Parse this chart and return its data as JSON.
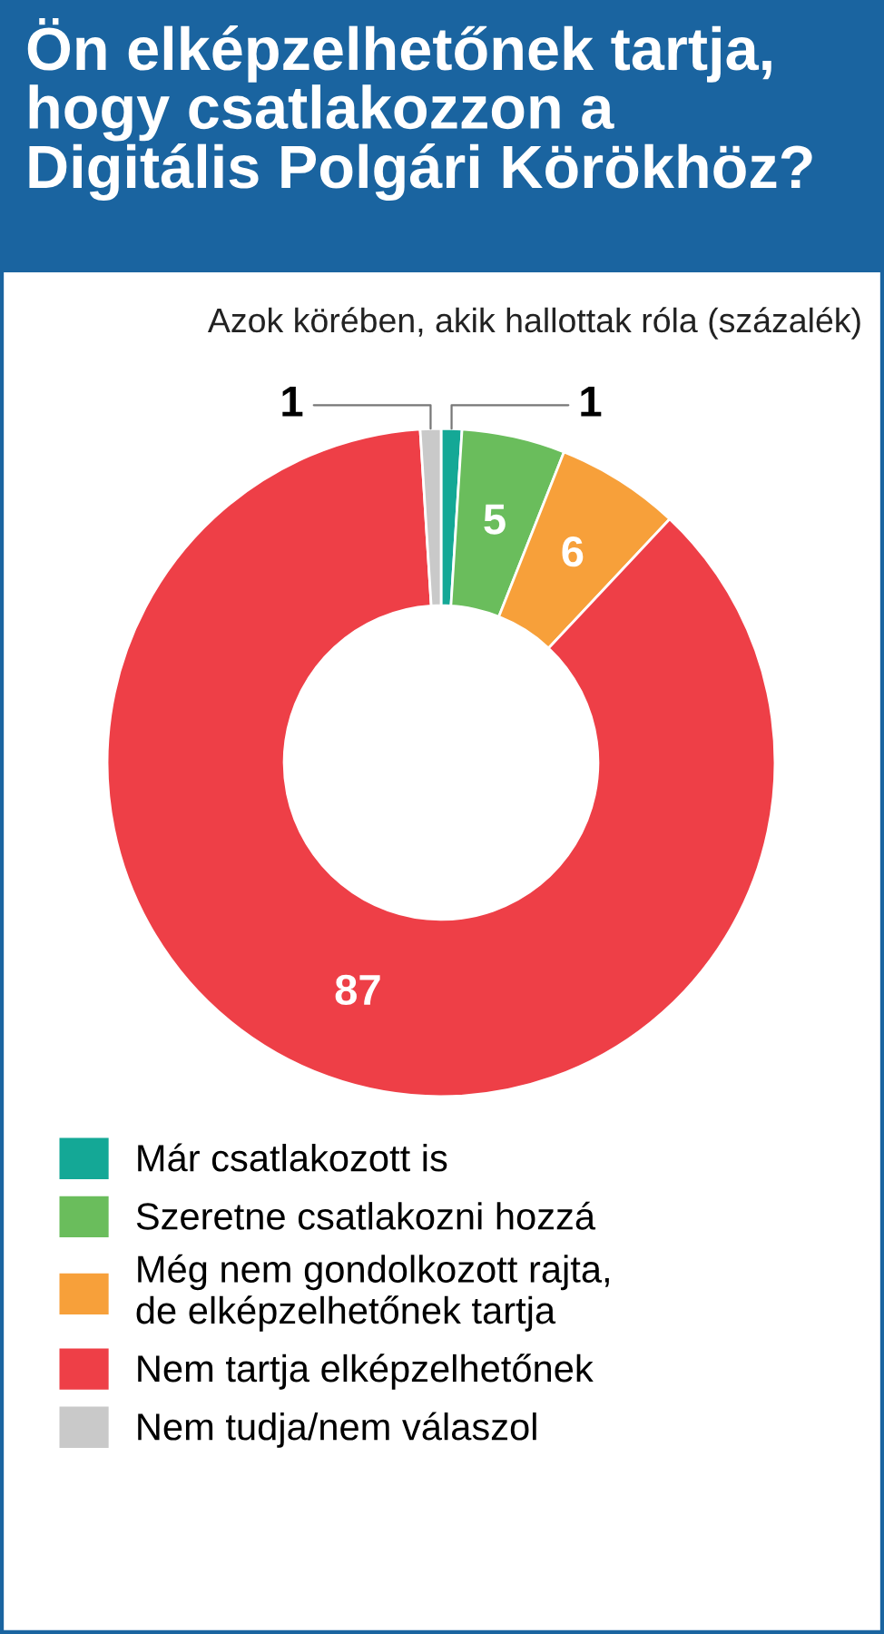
{
  "chart_data": {
    "type": "donut",
    "title": "Ön elképzelhetőnek tartja,\nhogy csatlakozzon a\nDigitális Polgári Körökhöz?",
    "subtitle": "Azok körében, akik hallottak róla (százalék)",
    "categories": [
      "Már csatlakozott is",
      "Szeretne csatlakozni hozzá",
      "Még nem gondolkozott rajta,\nde elképzelhetőnek tartja",
      "Nem tartja elképzelhetőnek",
      "Nem tudja/nem válaszol"
    ],
    "values": [
      1,
      5,
      6,
      87,
      1
    ],
    "colors": [
      "#14a896",
      "#6abd5c",
      "#f7a03a",
      "#ee3f47",
      "#c9c9c9"
    ],
    "data_labels": true,
    "legend": "bottom"
  }
}
